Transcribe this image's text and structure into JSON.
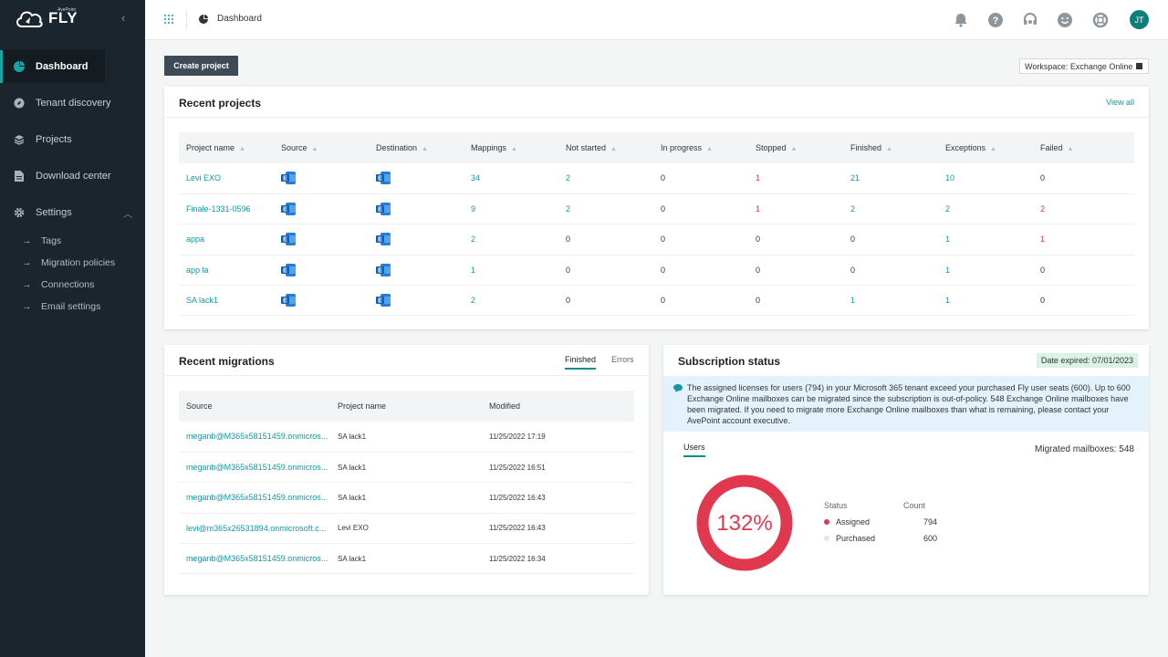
{
  "app": {
    "brand_small": "AvePoint",
    "brand": "FLY"
  },
  "sidebar": {
    "items": [
      {
        "label": "Dashboard",
        "icon": "dashboard-icon"
      },
      {
        "label": "Tenant discovery",
        "icon": "compass-icon"
      },
      {
        "label": "Projects",
        "icon": "layers-icon"
      },
      {
        "label": "Download center",
        "icon": "file-icon"
      },
      {
        "label": "Settings",
        "icon": "gear-icon"
      }
    ],
    "settings_sub": [
      "Tags",
      "Migration policies",
      "Connections",
      "Email settings"
    ]
  },
  "topbar": {
    "breadcrumb": "Dashboard",
    "avatar_initials": "JT"
  },
  "actions": {
    "create_project": "Create project",
    "workspace": "Workspace: Exchange Online"
  },
  "recent_projects": {
    "title": "Recent projects",
    "view_all": "View all",
    "columns": [
      "Project name",
      "Source",
      "Destination",
      "Mappings",
      "Not started",
      "In progress",
      "Stopped",
      "Finished",
      "Exceptions",
      "Failed"
    ],
    "rows": [
      {
        "name": "Levi EXO",
        "mappings": "34",
        "not_started": "2",
        "in_progress": "0",
        "stopped": "1",
        "finished": "21",
        "exceptions": "10",
        "failed": "0"
      },
      {
        "name": "Finale-1331-0596",
        "mappings": "9",
        "not_started": "2",
        "in_progress": "0",
        "stopped": "1",
        "finished": "2",
        "exceptions": "2",
        "failed": "2"
      },
      {
        "name": "appa",
        "mappings": "2",
        "not_started": "0",
        "in_progress": "0",
        "stopped": "0",
        "finished": "0",
        "exceptions": "1",
        "failed": "1"
      },
      {
        "name": "app la",
        "mappings": "1",
        "not_started": "0",
        "in_progress": "0",
        "stopped": "0",
        "finished": "0",
        "exceptions": "1",
        "failed": "0"
      },
      {
        "name": "SA lack1",
        "mappings": "2",
        "not_started": "0",
        "in_progress": "0",
        "stopped": "0",
        "finished": "1",
        "exceptions": "1",
        "failed": "0"
      }
    ]
  },
  "recent_migrations": {
    "title": "Recent migrations",
    "tabs": [
      "Finished",
      "Errors"
    ],
    "columns": [
      "Source",
      "Project name",
      "Modified"
    ],
    "rows": [
      {
        "source": "meganb@M365x58151459.onmicros...",
        "project": "SA lack1",
        "modified": "11/25/2022 17:19"
      },
      {
        "source": "meganb@M365x58151459.onmicros...",
        "project": "SA lack1",
        "modified": "11/25/2022 16:51"
      },
      {
        "source": "meganb@M365x58151459.onmicros...",
        "project": "SA lack1",
        "modified": "11/25/2022 16:43"
      },
      {
        "source": "levi@m365x26531894.onmicrosoft.c...",
        "project": "Levi EXO",
        "modified": "11/25/2022 16:43"
      },
      {
        "source": "meganb@M365x58151459.onmicros...",
        "project": "SA lack1",
        "modified": "11/25/2022 16:34"
      }
    ]
  },
  "subscription": {
    "title": "Subscription status",
    "date_expired": "Date expired: 07/01/2023",
    "notice": "The assigned licenses for users (794) in your Microsoft 365 tenant exceed your purchased Fly user seats (600). Up to 600 Exchange Online mailboxes can be migrated since the subscription is out-of-policy. 548 Exchange Online mailboxes have been migrated. If you need to migrate more Exchange Online mailboxes than what is remaining, please contact your AvePoint account executive.",
    "tab_users": "Users",
    "migrated": "Migrated mailboxes: 548",
    "donut_label": "132%",
    "legend": {
      "status_header": "Status",
      "count_header": "Count",
      "items": [
        {
          "label": "Assigned",
          "count": "794",
          "color": "#e0394f"
        },
        {
          "label": "Purchased",
          "count": "600",
          "color": "#e4e6e7"
        }
      ]
    }
  },
  "colors": {
    "accent": "#1497a8",
    "sidebar": "#1b252d",
    "danger": "#d03a52"
  }
}
